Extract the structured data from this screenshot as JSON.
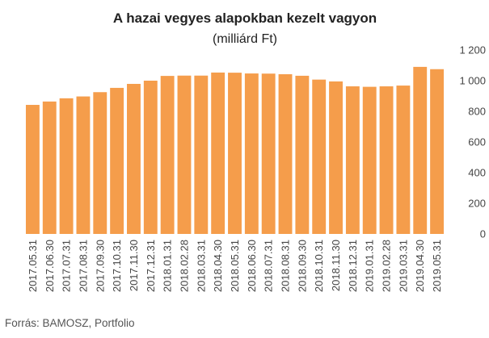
{
  "chart_data": {
    "type": "bar",
    "title": "A hazai vegyes alapokban kezelt vagyon",
    "subtitle": "(milliárd Ft)",
    "xlabel": "",
    "ylabel": "",
    "categories": [
      "2017.05.31",
      "2017.06.30",
      "2017.07.31",
      "2017.08.31",
      "2017.09.30",
      "2017.10.31",
      "2017.11.30",
      "2017.12.31",
      "2018.01.31",
      "2018.02.28",
      "2018.03.31",
      "2018.04.30",
      "2018.05.31",
      "2018.06.30",
      "2018.07.31",
      "2018.08.31",
      "2018.09.30",
      "2018.10.31",
      "2018.11.30",
      "2018.12.31",
      "2019.01.31",
      "2019.02.28",
      "2019.03.31",
      "2019.04.30",
      "2019.05.31"
    ],
    "values": [
      842,
      864,
      885,
      897,
      925,
      953,
      979,
      1000,
      1031,
      1033,
      1033,
      1053,
      1052,
      1047,
      1046,
      1042,
      1032,
      1007,
      995,
      963,
      960,
      963,
      968,
      1090,
      1075
    ],
    "ylim": [
      0,
      1200
    ],
    "yticks": [
      0,
      200,
      400,
      600,
      800,
      1000,
      1200
    ],
    "ytick_labels": [
      "0",
      "200",
      "400",
      "600",
      "800",
      "1 000",
      "1 200"
    ],
    "yaxis_position": "right",
    "grid": false,
    "legend": "none",
    "bar_color": "#F59D4B",
    "source": "Forrás: BAMOSZ, Portfolio"
  }
}
